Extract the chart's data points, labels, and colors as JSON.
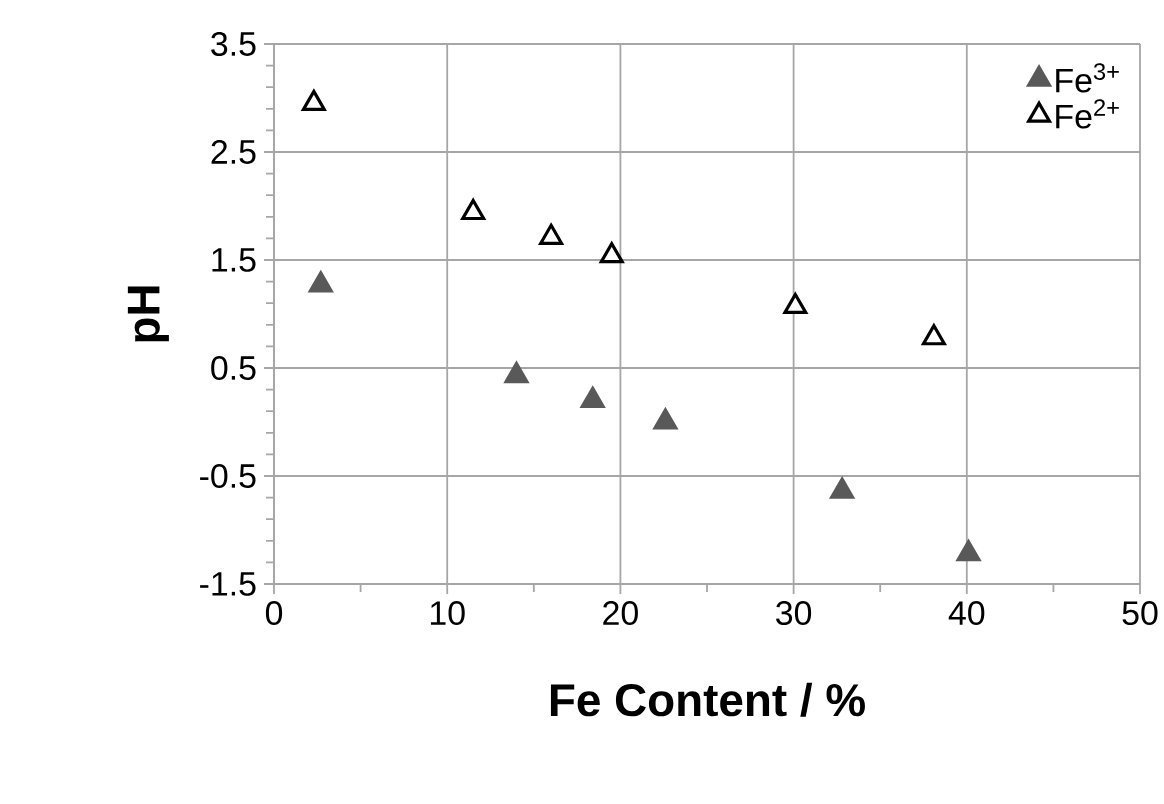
{
  "chart_data": {
    "type": "scatter",
    "xlabel": "Fe Content  / %",
    "ylabel": "pH",
    "xlim": [
      0,
      50
    ],
    "xticks": [
      0,
      10,
      20,
      30,
      40,
      50
    ],
    "ylim": [
      -1.5,
      3.5
    ],
    "yticks": [
      -1.5,
      -0.5,
      0.5,
      1.5,
      2.5,
      3.5
    ],
    "grid": true,
    "legend": "top right",
    "marker": "triangle",
    "series": [
      {
        "name": "Fe$^{3+}$",
        "color": "#595959",
        "x": [
          2.7,
          14.0,
          18.4,
          22.6,
          32.8,
          40.1
        ],
        "values": [
          1.27,
          0.43,
          0.2,
          0.0,
          -0.64,
          -1.22
        ]
      },
      {
        "name": "Fe$^{2+}$",
        "color": "#000000",
        "marker": "triangle-open",
        "x": [
          2.3,
          11.5,
          16.0,
          19.5,
          30.1,
          38.1
        ],
        "values": [
          2.95,
          1.94,
          1.71,
          1.54,
          1.07,
          0.78
        ]
      }
    ]
  }
}
